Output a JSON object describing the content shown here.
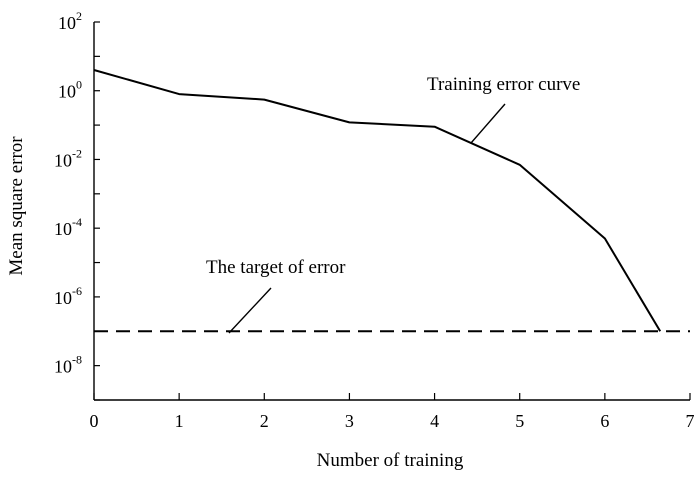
{
  "chart_data": {
    "type": "line",
    "xlabel": "Number of training",
    "ylabel": "Mean square error",
    "xlim": [
      0,
      7
    ],
    "ylim": [
      1e-09,
      100
    ],
    "yscale": "log",
    "grid": false,
    "x_ticks": [
      0,
      1,
      2,
      3,
      4,
      5,
      6,
      7
    ],
    "y_ticks": [
      {
        "value": 100,
        "base": "10",
        "exp": "2"
      },
      {
        "value": 1,
        "base": "10",
        "exp": "0"
      },
      {
        "value": 0.01,
        "base": "10",
        "exp": "-2"
      },
      {
        "value": 0.0001,
        "base": "10",
        "exp": "-4"
      },
      {
        "value": 1e-06,
        "base": "10",
        "exp": "-6"
      },
      {
        "value": 1e-08,
        "base": "10",
        "exp": "-8"
      }
    ],
    "series": [
      {
        "name": "Training error curve",
        "style": "solid",
        "color": "#000000",
        "x": [
          0,
          1,
          2,
          3,
          4,
          5,
          6,
          6.65
        ],
        "y": [
          4,
          0.8,
          0.55,
          0.12,
          0.09,
          0.007,
          5e-05,
          1e-07
        ]
      },
      {
        "name": "The target of error",
        "style": "dashed",
        "color": "#000000",
        "x": [
          0,
          7
        ],
        "y": [
          1e-07,
          1e-07
        ]
      }
    ],
    "annotations": [
      {
        "text": "Training error curve",
        "series": 0
      },
      {
        "text": "The target of error",
        "series": 1
      }
    ]
  }
}
